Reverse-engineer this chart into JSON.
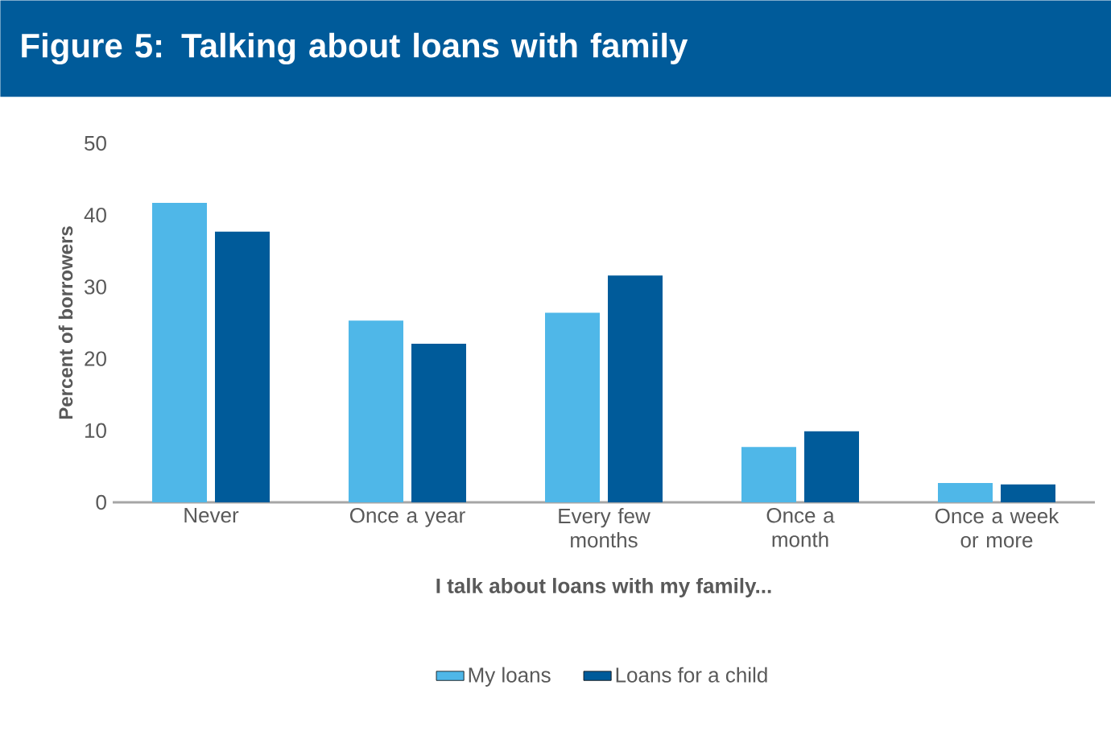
{
  "chart_data": {
    "type": "bar",
    "title": "Figure 5: Talking about loans with family",
    "xlabel": "I talk about loans with my family...",
    "ylabel": "Percent of borrowers",
    "categories": [
      "Never",
      "Once a year",
      "Every few months",
      "Once a month",
      "Once a week or more"
    ],
    "series": [
      {
        "name": "My loans",
        "color": "#4fb7e8",
        "values": [
          41.7,
          25.3,
          26.4,
          7.7,
          2.7
        ]
      },
      {
        "name": "Loans for a child",
        "color": "#005b9a",
        "values": [
          37.7,
          22.1,
          31.6,
          9.9,
          2.5
        ]
      }
    ],
    "ylim": [
      0,
      50
    ],
    "yticks": [
      0,
      10,
      20,
      30,
      40,
      50
    ],
    "legend": "bottom"
  }
}
